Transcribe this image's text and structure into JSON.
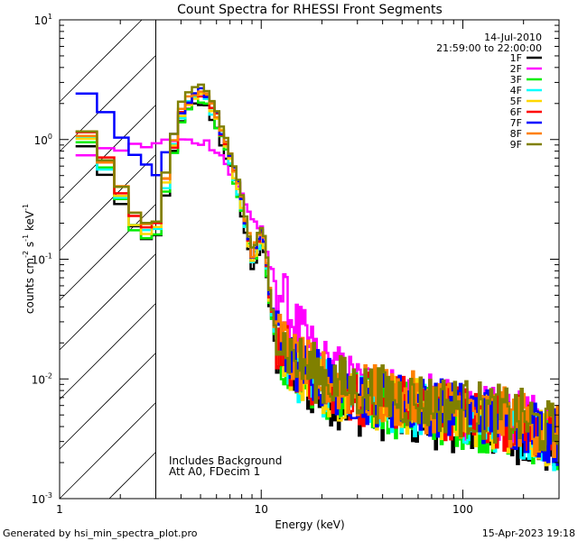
{
  "chart_data": {
    "type": "line",
    "title": "Count Spectra for RHESSI Front Segments",
    "xlabel": "Energy (keV)",
    "ylabel": "counts cm⁻² s⁻¹ keV⁻¹",
    "ylabel_parts": [
      "counts cm",
      "-2",
      " s",
      "-1",
      " keV",
      "-1"
    ],
    "xscale": "log",
    "yscale": "log",
    "xlim": [
      1,
      300
    ],
    "ylim": [
      0.001,
      10
    ],
    "x_ticks": [
      {
        "value": 1,
        "label": "1"
      },
      {
        "value": 10,
        "label": "10"
      },
      {
        "value": 100,
        "label": "100"
      }
    ],
    "y_ticks": [
      {
        "value": 0.001,
        "base": "10",
        "exp": "-3"
      },
      {
        "value": 0.01,
        "base": "10",
        "exp": "-2"
      },
      {
        "value": 0.1,
        "base": "10",
        "exp": "-1"
      },
      {
        "value": 1,
        "base": "10",
        "exp": "0"
      },
      {
        "value": 10,
        "base": "10",
        "exp": "1"
      }
    ],
    "shaded_region": {
      "x_from": 1,
      "x_to": 3,
      "pattern": "diagonal hatch"
    },
    "date": "14-Jul-2010",
    "time_range": "21:59:00 to 22:00:00",
    "annotations": [
      "Includes Background",
      "Att A0, FDecim 1"
    ],
    "legend_position": "top-right",
    "series": [
      {
        "name": "1F",
        "color": "#000000"
      },
      {
        "name": "2F",
        "color": "#ff00ff"
      },
      {
        "name": "3F",
        "color": "#00ee00"
      },
      {
        "name": "4F",
        "color": "#00ffff"
      },
      {
        "name": "5F",
        "color": "#ffd700"
      },
      {
        "name": "6F",
        "color": "#ff0000"
      },
      {
        "name": "7F",
        "color": "#0000ff"
      },
      {
        "name": "8F",
        "color": "#ff8000"
      },
      {
        "name": "9F",
        "color": "#808000"
      }
    ],
    "anchor_points": {
      "energies": [
        1.2,
        1.5,
        2.0,
        2.5,
        3.0,
        3.5,
        4.0,
        4.5,
        5.0,
        5.5,
        6.0,
        6.5,
        7.0,
        8.0,
        9.0,
        10.0,
        10.5,
        11.0,
        12.0,
        15.0,
        20.0,
        30.0,
        50.0,
        100.0,
        200.0,
        300.0
      ],
      "typical": [
        1.1,
        0.95,
        0.35,
        0.17,
        0.17,
        0.6,
        1.6,
        2.2,
        2.4,
        2.1,
        1.5,
        1.0,
        0.7,
        0.3,
        0.1,
        0.15,
        0.12,
        0.05,
        0.02,
        0.012,
        0.009,
        0.007,
        0.006,
        0.005,
        0.004,
        0.003
      ],
      "2F": [
        0.85,
        0.9,
        0.95,
        1.0,
        1.05,
        1.1,
        1.1,
        1.1,
        1.1,
        1.05,
        0.95,
        0.8,
        0.6,
        0.4,
        0.25,
        0.2,
        0.15,
        0.1,
        0.07,
        0.03,
        0.015,
        0.01,
        0.008,
        0.006,
        0.005,
        0.004
      ],
      "7F": [
        2.8,
        2.0,
        1.0,
        0.6,
        0.45,
        0.8,
        1.6,
        2.2,
        2.4,
        2.1,
        1.5,
        1.0,
        0.7,
        0.3,
        0.1,
        0.15,
        0.12,
        0.05,
        0.02,
        0.012,
        0.009,
        0.007,
        0.006,
        0.005,
        0.004,
        0.003
      ]
    }
  },
  "footer": {
    "left": "Generated by hsi_min_spectra_plot.pro",
    "right": "15-Apr-2023 19:18"
  }
}
